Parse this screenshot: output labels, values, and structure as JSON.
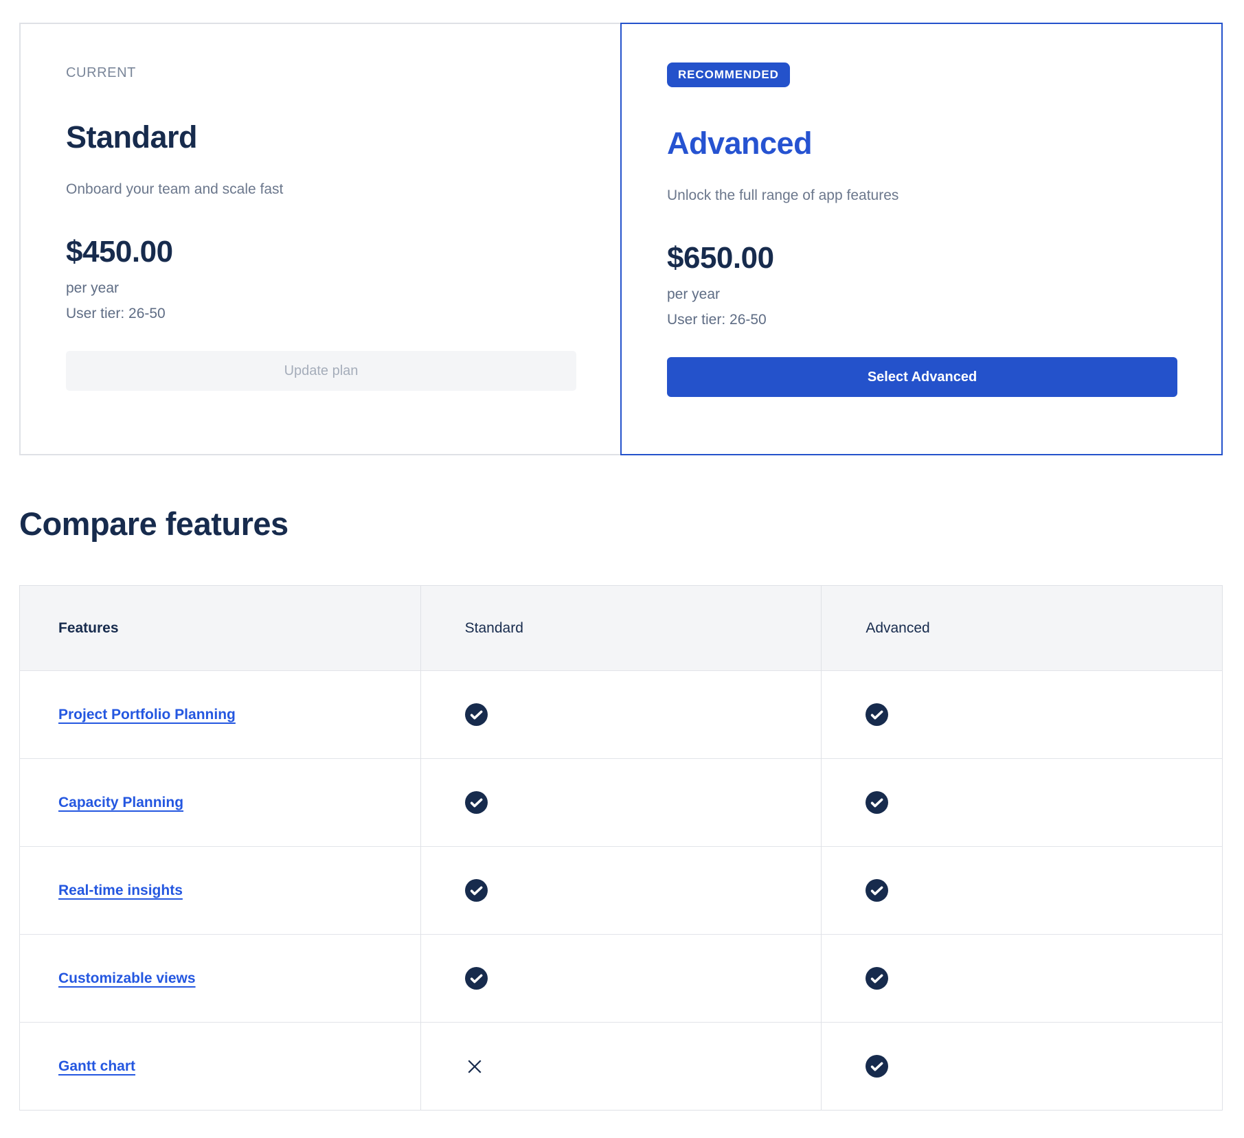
{
  "plans": {
    "current": {
      "label": "CURRENT",
      "name": "Standard",
      "description": "Onboard your team and scale fast",
      "price": "$450.00",
      "billing_period": "per year",
      "user_tier": "User tier: 26-50",
      "button_label": "Update plan",
      "button_state": "disabled"
    },
    "recommended": {
      "badge_label": "RECOMMENDED",
      "name": "Advanced",
      "description": "Unlock the full range of app features",
      "price": "$650.00",
      "billing_period": "per year",
      "user_tier": "User tier: 26-50",
      "button_label": "Select Advanced",
      "button_state": "enabled"
    }
  },
  "compare": {
    "title": "Compare features",
    "columns": [
      "Features",
      "Standard",
      "Advanced"
    ],
    "rows": [
      {
        "feature": "Project Portfolio Planning",
        "standard": true,
        "advanced": true
      },
      {
        "feature": "Capacity Planning",
        "standard": true,
        "advanced": true
      },
      {
        "feature": "Real-time insights",
        "standard": true,
        "advanced": true
      },
      {
        "feature": "Customizable views",
        "standard": true,
        "advanced": true
      },
      {
        "feature": "Gantt chart",
        "standard": false,
        "advanced": true
      }
    ],
    "included_icon": "check-circle-icon",
    "not_included_icon": "x-icon"
  },
  "colors": {
    "accent_blue": "#2452CB",
    "accent_blue_bright": "#2653D1",
    "link_blue": "#2457E0",
    "navy_text": "#172B4D",
    "muted_gray": "#6B778C",
    "meta_gray": "#5E6C84",
    "disabled_bg": "#F4F5F7",
    "disabled_text": "#A5ADBA",
    "border_gray": "#DFE1E6",
    "check_circle": "#172B4D"
  }
}
